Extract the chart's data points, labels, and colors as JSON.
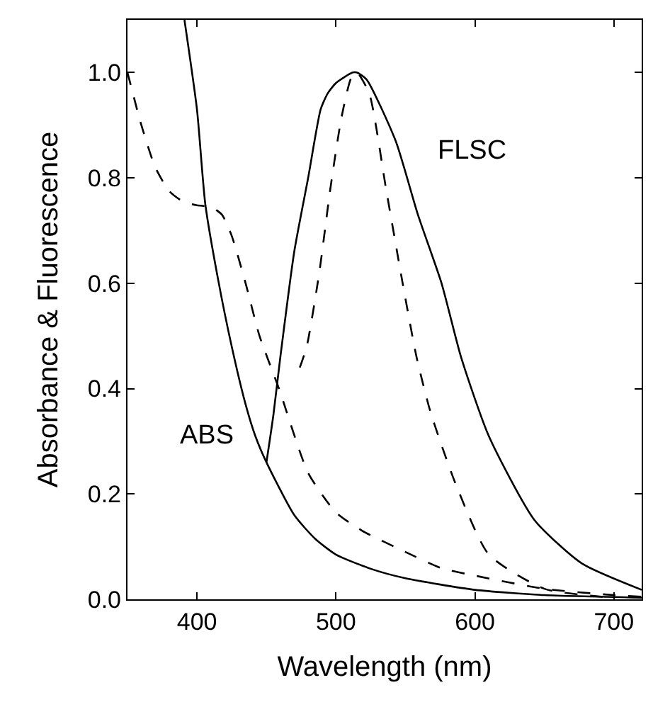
{
  "chart_data": {
    "type": "line",
    "xlabel": "Wavelength (nm)",
    "ylabel": "Absorbance & Fluorescence",
    "xlim": [
      350,
      720
    ],
    "ylim": [
      0,
      1.1
    ],
    "xticks": [
      400,
      500,
      600,
      700
    ],
    "yticks": [
      {
        "value": 0,
        "label": "0.0"
      },
      {
        "value": 0.2,
        "label": "0.2"
      },
      {
        "value": 0.4,
        "label": "0.4"
      },
      {
        "value": 0.6,
        "label": "0.6"
      },
      {
        "value": 0.8,
        "label": "0.8"
      },
      {
        "value": 1.0,
        "label": "1.0"
      }
    ],
    "marker": "none",
    "series": [
      {
        "color": "#000000",
        "line_style": "solid",
        "x": [
          391,
          400,
          406,
          415,
          425,
          435,
          442,
          450,
          470,
          485,
          500,
          525,
          550,
          600,
          650,
          720
        ],
        "values": [
          1.1,
          0.93,
          0.75,
          0.61,
          0.48,
          0.37,
          0.31,
          0.26,
          0.16,
          0.115,
          0.085,
          0.058,
          0.04,
          0.018,
          0.008,
          0.003
        ]
      },
      {
        "color": "#000000",
        "line_style": "dashed",
        "x": [
          350,
          360,
          370,
          380,
          390,
          400,
          410,
          418,
          425,
          435,
          445,
          459,
          480,
          500,
          519,
          550,
          576,
          600,
          650,
          700,
          720
        ],
        "values": [
          1.0,
          0.9,
          0.82,
          0.775,
          0.755,
          0.748,
          0.745,
          0.73,
          0.69,
          0.6,
          0.5,
          0.4,
          0.24,
          0.165,
          0.13,
          0.09,
          0.059,
          0.045,
          0.02,
          0.008,
          0.005
        ]
      },
      {
        "color": "#000000",
        "line_style": "solid",
        "x": [
          450,
          455,
          460,
          470,
          480,
          489,
          494,
          500,
          512,
          515,
          522,
          543,
          559,
          576,
          590,
          610,
          643,
          677,
          720
        ],
        "values": [
          0.26,
          0.35,
          0.46,
          0.66,
          0.8,
          0.93,
          0.96,
          0.98,
          1.0,
          1.0,
          0.987,
          0.87,
          0.73,
          0.6,
          0.46,
          0.31,
          0.15,
          0.068,
          0.018
        ]
      },
      {
        "color": "#000000",
        "line_style": "dashed",
        "x": [
          474,
          479,
          488,
          496,
          504,
          511,
          515,
          524,
          536,
          548,
          558,
          568,
          586,
          610,
          650,
          700
        ],
        "values": [
          0.44,
          0.48,
          0.62,
          0.78,
          0.915,
          0.99,
          1.0,
          0.96,
          0.78,
          0.6,
          0.46,
          0.356,
          0.22,
          0.085,
          0.02,
          0.003
        ]
      }
    ],
    "annotations": [
      "ABS",
      "FLSC"
    ]
  }
}
